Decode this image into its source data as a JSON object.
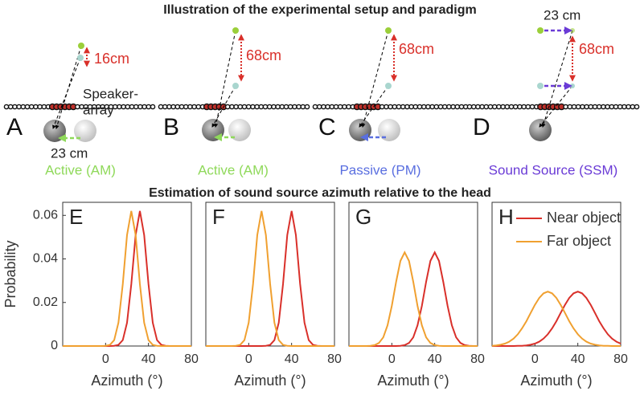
{
  "diagram": {
    "title": "Illustration of the experimental setup and paradigm",
    "speaker_label": [
      "Speaker-",
      "array"
    ],
    "panels": [
      {
        "letter": "A",
        "distance": "16cm",
        "offset": "23 cm",
        "label": "Active (AM)",
        "color": "#8fd95a"
      },
      {
        "letter": "B",
        "distance": "68cm",
        "label": "Active (AM)",
        "color": "#8fd95a"
      },
      {
        "letter": "C",
        "distance": "68cm",
        "label": "Passive (PM)",
        "color": "#5a6fe0"
      },
      {
        "letter": "D",
        "distance": "68cm",
        "offset": "23 cm",
        "label": "Sound Source (SSM)",
        "color": "#6a3bd6"
      }
    ],
    "subtitle": "Estimation of sound source azimuth relative to the head"
  },
  "chart_data": [
    {
      "type": "line",
      "label": "E",
      "xlabel": "Azimuth (°)",
      "ylabel": "Probability",
      "x": [
        -40,
        -36,
        -32,
        -28,
        -24,
        -20,
        -16,
        -12,
        -8,
        -4,
        0,
        4,
        8,
        12,
        16,
        20,
        24,
        28,
        32,
        36,
        40,
        44,
        48,
        52,
        56,
        60,
        64,
        68,
        72,
        76,
        80
      ],
      "xlim": [
        -40,
        80
      ],
      "xticks": [
        0,
        40,
        80
      ],
      "ylim": [
        0,
        0.066
      ],
      "yticks": [
        0,
        0.02,
        0.04,
        0.06
      ],
      "series": [
        {
          "name": "Near object",
          "color": "#d9302a",
          "values": [
            0,
            0,
            0,
            0,
            0,
            0,
            0,
            0,
            0,
            0,
            0,
            0,
            0.0001,
            0.0005,
            0.0027,
            0.0107,
            0.0284,
            0.051,
            0.062,
            0.051,
            0.0284,
            0.0107,
            0.0027,
            0.0005,
            0.0001,
            0,
            0,
            0,
            0,
            0,
            0
          ]
        },
        {
          "name": "Far object",
          "color": "#f0a030",
          "values": [
            0,
            0,
            0,
            0,
            0,
            0,
            0,
            0,
            0,
            0,
            0.0001,
            0.0005,
            0.0027,
            0.0107,
            0.0284,
            0.051,
            0.062,
            0.051,
            0.0284,
            0.0107,
            0.0027,
            0.0005,
            0.0001,
            0,
            0,
            0,
            0,
            0,
            0,
            0,
            0
          ]
        }
      ]
    },
    {
      "type": "line",
      "label": "F",
      "xlabel": "Azimuth (°)",
      "x": [
        -40,
        -36,
        -32,
        -28,
        -24,
        -20,
        -16,
        -12,
        -8,
        -4,
        0,
        4,
        8,
        12,
        16,
        20,
        24,
        28,
        32,
        36,
        40,
        44,
        48,
        52,
        56,
        60,
        64,
        68,
        72,
        76,
        80
      ],
      "xlim": [
        -40,
        80
      ],
      "xticks": [
        0,
        40,
        80
      ],
      "ylim": [
        0,
        0.066
      ],
      "series": [
        {
          "name": "Near object",
          "color": "#d9302a",
          "values": [
            0,
            0,
            0,
            0,
            0,
            0,
            0,
            0,
            0,
            0,
            0,
            0,
            0,
            0,
            0.0001,
            0.0005,
            0.0027,
            0.0107,
            0.0284,
            0.051,
            0.062,
            0.051,
            0.0284,
            0.0107,
            0.0027,
            0.0005,
            0.0001,
            0,
            0,
            0,
            0
          ]
        },
        {
          "name": "Far object",
          "color": "#f0a030",
          "values": [
            0,
            0,
            0,
            0,
            0,
            0,
            0,
            0.0001,
            0.0005,
            0.0027,
            0.0107,
            0.0284,
            0.051,
            0.062,
            0.051,
            0.0284,
            0.0107,
            0.0027,
            0.0005,
            0.0001,
            0,
            0,
            0,
            0,
            0,
            0,
            0,
            0,
            0,
            0,
            0
          ]
        }
      ]
    },
    {
      "type": "line",
      "label": "G",
      "xlabel": "Azimuth (°)",
      "x": [
        -40,
        -36,
        -32,
        -28,
        -24,
        -20,
        -16,
        -12,
        -8,
        -4,
        0,
        4,
        8,
        12,
        16,
        20,
        24,
        28,
        32,
        36,
        40,
        44,
        48,
        52,
        56,
        60,
        64,
        68,
        72,
        76,
        80
      ],
      "xlim": [
        -40,
        80
      ],
      "xticks": [
        0,
        40,
        80
      ],
      "ylim": [
        0,
        0.066
      ],
      "series": [
        {
          "name": "Near object",
          "color": "#d9302a",
          "values": [
            0,
            0,
            0,
            0,
            0,
            0,
            0,
            0,
            0,
            0,
            0,
            0,
            0.0001,
            0.0004,
            0.0014,
            0.004,
            0.0095,
            0.0184,
            0.0295,
            0.0391,
            0.043,
            0.0391,
            0.0295,
            0.0184,
            0.0095,
            0.004,
            0.0014,
            0.0004,
            0.0001,
            0,
            0
          ]
        },
        {
          "name": "Far object",
          "color": "#f0a030",
          "values": [
            0,
            0,
            0,
            0,
            0,
            0.0001,
            0.0004,
            0.0014,
            0.004,
            0.0095,
            0.0184,
            0.0295,
            0.0391,
            0.043,
            0.0391,
            0.0295,
            0.0184,
            0.0095,
            0.004,
            0.0014,
            0.0004,
            0.0001,
            0,
            0,
            0,
            0,
            0,
            0,
            0,
            0,
            0
          ]
        }
      ]
    },
    {
      "type": "line",
      "label": "H",
      "xlabel": "Azimuth (°)",
      "x": [
        -40,
        -36,
        -32,
        -28,
        -24,
        -20,
        -16,
        -12,
        -8,
        -4,
        0,
        4,
        8,
        12,
        16,
        20,
        24,
        28,
        32,
        36,
        40,
        44,
        48,
        52,
        56,
        60,
        64,
        68,
        72,
        76,
        80
      ],
      "xlim": [
        -40,
        80
      ],
      "xticks": [
        0,
        40,
        80
      ],
      "ylim": [
        0,
        0.066
      ],
      "legend": "upper right",
      "series": [
        {
          "name": "Near object",
          "color": "#d9302a",
          "values": [
            0,
            0,
            0,
            0,
            0,
            0,
            0.0001,
            0.0001,
            0.0003,
            0.0006,
            0.0011,
            0.002,
            0.0034,
            0.0054,
            0.0081,
            0.0114,
            0.0152,
            0.0189,
            0.0221,
            0.0242,
            0.025,
            0.0242,
            0.0221,
            0.0189,
            0.0152,
            0.0114,
            0.0081,
            0.0054,
            0.0034,
            0.002,
            0.0011
          ]
        },
        {
          "name": "Far object",
          "color": "#f0a030",
          "values": [
            0.0001,
            0.0003,
            0.0006,
            0.0011,
            0.002,
            0.0034,
            0.0054,
            0.0081,
            0.0114,
            0.0152,
            0.0189,
            0.0221,
            0.0242,
            0.025,
            0.0242,
            0.0221,
            0.0189,
            0.0152,
            0.0114,
            0.0081,
            0.0054,
            0.0034,
            0.002,
            0.0011,
            0.0006,
            0.0003,
            0.0001,
            0.0001,
            0,
            0,
            0
          ]
        }
      ]
    }
  ]
}
